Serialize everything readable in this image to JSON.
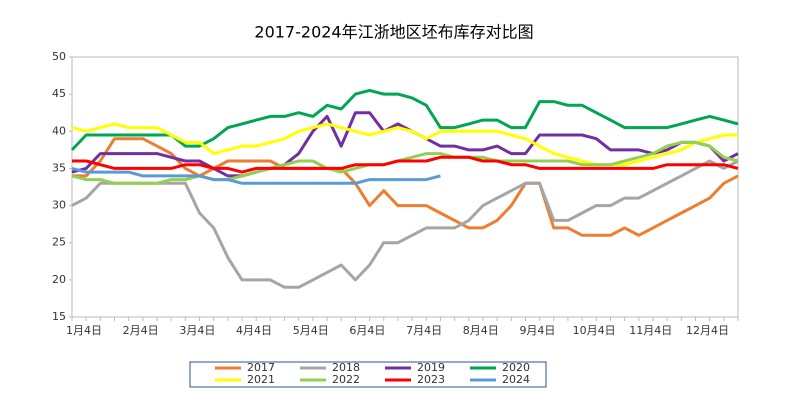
{
  "chart_data": {
    "type": "line",
    "title": "2017-2024年江浙地区坯布库存对比图",
    "categories": [
      "1月4日",
      null,
      null,
      null,
      "2月4日",
      null,
      null,
      null,
      "3月4日",
      null,
      null,
      null,
      "4月4日",
      null,
      null,
      null,
      "5月4日",
      null,
      null,
      null,
      "6月4日",
      null,
      null,
      null,
      "7月4日",
      null,
      null,
      null,
      "8月4日",
      null,
      null,
      null,
      "9月4日",
      null,
      null,
      null,
      "10月4日",
      null,
      null,
      null,
      "11月4日",
      null,
      null,
      null,
      "12月4日",
      null,
      null,
      null
    ],
    "ylim": [
      15,
      50
    ],
    "yticks": [
      15,
      20,
      25,
      30,
      35,
      40,
      45,
      50
    ],
    "grid": false,
    "series": [
      {
        "name": "2017",
        "color": "#ed7d31",
        "values": [
          34,
          34,
          36,
          39,
          39,
          39,
          38,
          37,
          35,
          34,
          35,
          36,
          36,
          36,
          36,
          35,
          35,
          35,
          35,
          35,
          33,
          30,
          32,
          30,
          30,
          30,
          29,
          28,
          27,
          27,
          28,
          30,
          33,
          33,
          27,
          27,
          26,
          26,
          26,
          27,
          26,
          27,
          28,
          29,
          30,
          31,
          33,
          34
        ]
      },
      {
        "name": "2018",
        "color": "#a5a5a5",
        "values": [
          30,
          31,
          33,
          33,
          33,
          33,
          33,
          33,
          33,
          29,
          27,
          23,
          20,
          20,
          20,
          19,
          19,
          20,
          21,
          22,
          20,
          22,
          25,
          25,
          26,
          27,
          27,
          27,
          28,
          30,
          31,
          32,
          33,
          33,
          28,
          28,
          29,
          30,
          30,
          31,
          31,
          32,
          33,
          34,
          35,
          36,
          35,
          36
        ]
      },
      {
        "name": "2019",
        "color": "#7030a0",
        "values": [
          34.5,
          35,
          37,
          37,
          37,
          37,
          37,
          36.5,
          36,
          36,
          35,
          34,
          34,
          34.5,
          35,
          35.5,
          37,
          40,
          42,
          38,
          42.5,
          42.5,
          40,
          41,
          40,
          39,
          38,
          38,
          37.5,
          37.5,
          38,
          37,
          37,
          39.5,
          39.5,
          39.5,
          39.5,
          39,
          37.5,
          37.5,
          37.5,
          37,
          37.5,
          38.5,
          38.5,
          38,
          36,
          37
        ]
      },
      {
        "name": "2020",
        "color": "#00a650",
        "values": [
          37.5,
          39.5,
          39.5,
          39.5,
          39.5,
          39.5,
          39.5,
          39.5,
          38,
          38,
          39,
          40.5,
          41,
          41.5,
          42,
          42,
          42.5,
          42,
          43.5,
          43,
          45,
          45.5,
          45,
          45,
          44.5,
          43.5,
          40.5,
          40.5,
          41,
          41.5,
          41.5,
          40.5,
          40.5,
          44,
          44,
          43.5,
          43.5,
          42.5,
          41.5,
          40.5,
          40.5,
          40.5,
          40.5,
          41,
          41.5,
          42,
          41.5,
          41
        ]
      },
      {
        "name": "2021",
        "color": "#ffff00",
        "values": [
          40.5,
          40,
          40.5,
          41,
          40.5,
          40.5,
          40.5,
          39.5,
          38.5,
          38.5,
          37,
          37.5,
          38,
          38,
          38.5,
          39,
          40,
          40.5,
          41,
          40.5,
          40,
          39.5,
          40,
          40.5,
          40,
          39,
          40,
          40,
          40,
          40,
          40,
          39.5,
          39,
          38,
          37,
          36.5,
          36,
          35.5,
          35.5,
          35.5,
          36,
          36.5,
          37,
          37.5,
          38.5,
          39,
          39.5,
          39.5
        ]
      },
      {
        "name": "2022",
        "color": "#92d050",
        "values": [
          34,
          33.5,
          33.5,
          33,
          33,
          33,
          33,
          33.5,
          33.5,
          34,
          33.5,
          33.5,
          34,
          34.5,
          35,
          35.5,
          36,
          36,
          35,
          34.5,
          35,
          35.5,
          35.5,
          36,
          36.5,
          37,
          37,
          36.5,
          36.5,
          36.5,
          36,
          36,
          36,
          36,
          36,
          36,
          35.5,
          35.5,
          35.5,
          36,
          36.5,
          37,
          38,
          38.5,
          38.5,
          38,
          36.5,
          36
        ]
      },
      {
        "name": "2023",
        "color": "#ff0000",
        "values": [
          36,
          36,
          35.5,
          35,
          35,
          35,
          35,
          35,
          35.5,
          35.5,
          35,
          35,
          34.5,
          35,
          35,
          35,
          35,
          35,
          35,
          35,
          35.5,
          35.5,
          35.5,
          36,
          36,
          36,
          36.5,
          36.5,
          36.5,
          36,
          36,
          35.5,
          35.5,
          35,
          35,
          35,
          35,
          35,
          35,
          35,
          35,
          35,
          35.5,
          35.5,
          35.5,
          35.5,
          35.5,
          35
        ]
      },
      {
        "name": "2024",
        "color": "#5b9bd5",
        "values": [
          35,
          34.5,
          34.5,
          34.5,
          34.5,
          34,
          34,
          34,
          34,
          34,
          33.5,
          33.5,
          33,
          33,
          33,
          33,
          33,
          33,
          33,
          33,
          33,
          33.5,
          33.5,
          33.5,
          33.5,
          33.5,
          34,
          null,
          null,
          null,
          null,
          null,
          null,
          null,
          null,
          null,
          null,
          null,
          null,
          null,
          null,
          null,
          null,
          null,
          null,
          null,
          null,
          null
        ]
      }
    ]
  }
}
